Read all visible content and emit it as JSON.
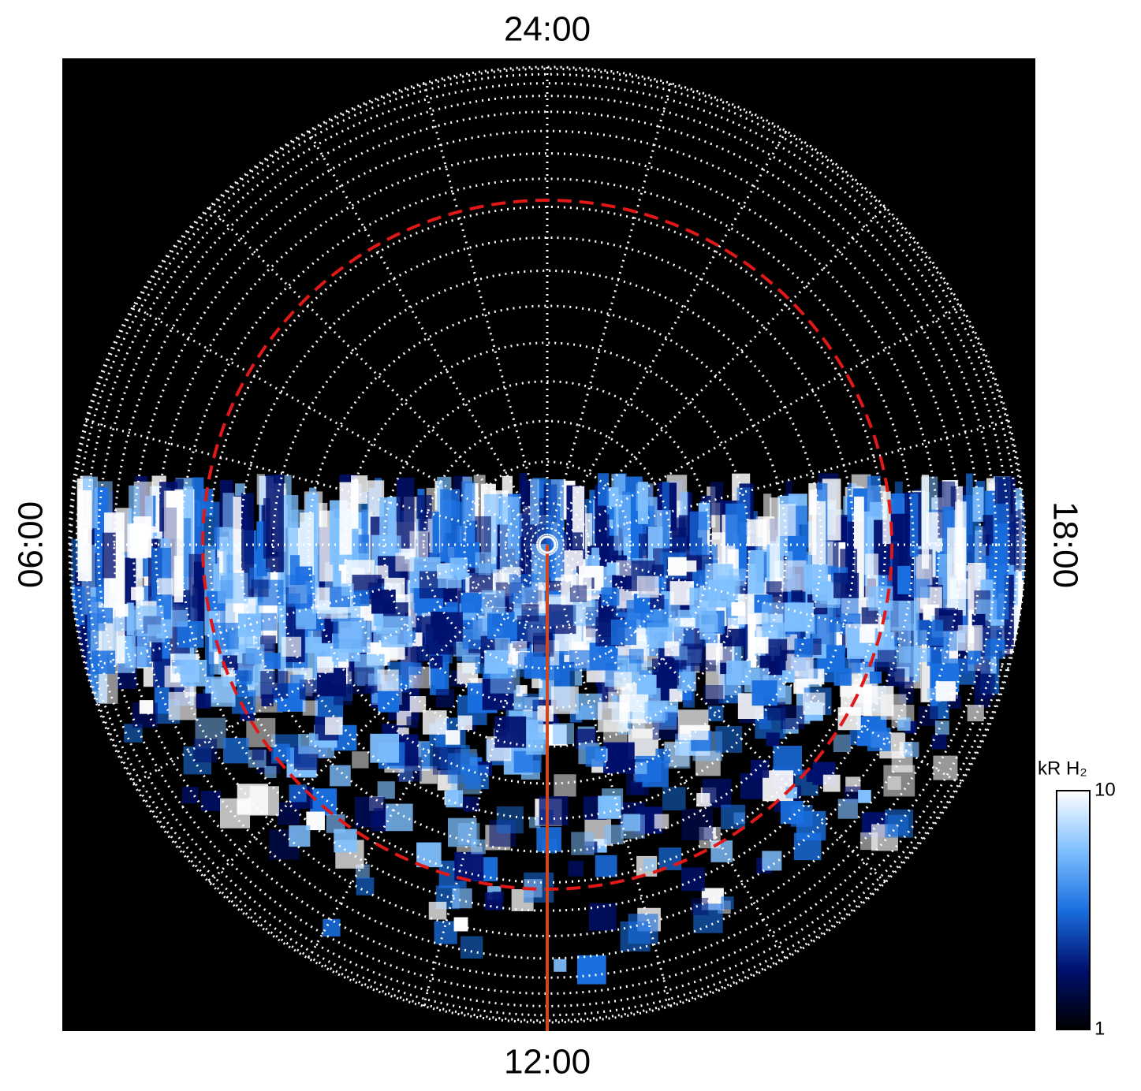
{
  "chart_data": {
    "type": "polar-image",
    "local_time_labels": {
      "top": "24:00",
      "left": "06:00",
      "bottom": "12:00",
      "right": "18:00"
    },
    "colorbar": {
      "label": "kR H₂",
      "scale": "log",
      "lim": [
        1,
        10
      ],
      "ticks": [
        1,
        10
      ],
      "colormap": [
        "#000000",
        "#00106e",
        "#1a6fe0",
        "#7fc0ff",
        "#ffffff"
      ]
    },
    "grid_color": "#ffffff",
    "oval_color": "#e01818",
    "meridian_color": "#d2461e"
  }
}
